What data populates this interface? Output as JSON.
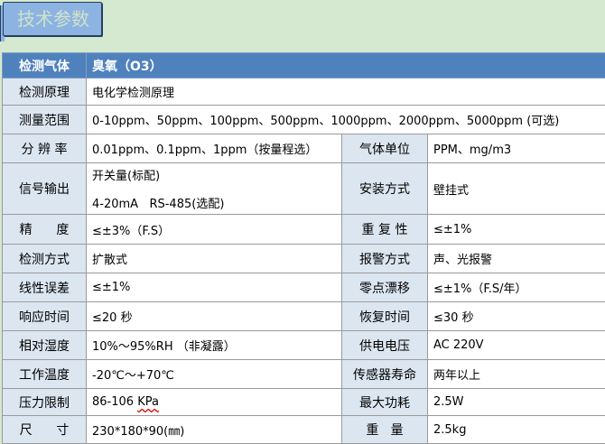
{
  "banner": {
    "title": "技术参数"
  },
  "header": {
    "label": "检测气体",
    "value": "臭氧（O3）"
  },
  "rows": [
    {
      "label": "检测原理",
      "value": "电化学检测原理"
    },
    {
      "label": "测量范围",
      "value": "0-10ppm、50ppm、100ppm、500ppm、1000ppm、2000ppm、5000ppm (可选)"
    },
    {
      "label": "分 辨 率",
      "value": "0.01ppm、0.1ppm、1ppm（按量程选）",
      "label2": "气体单位",
      "value2": "PPM、mg/m3"
    },
    {
      "label": "信号输出",
      "value_line1": "开关量(标配)",
      "value_line2": "4-20mA   RS-485(选配)",
      "label2": "安装方式",
      "value2": "壁挂式"
    },
    {
      "label": "精      度",
      "value": "≤±3%（F.S）",
      "label2": "重 复 性",
      "value2": "≤±1%"
    },
    {
      "label": "检测方式",
      "value": "扩散式",
      "label2": "报警方式",
      "value2": "声、光报警"
    },
    {
      "label": "线性误差",
      "value": "≤±1%",
      "label2": "零点漂移",
      "value2": "≤±1%（F.S/年）"
    },
    {
      "label": "响应时间",
      "value": "≤20 秒",
      "label2": "恢复时间",
      "value2": "≤30 秒"
    },
    {
      "label": "相对湿度",
      "value": "10%～95%RH （非凝露）",
      "label2": "供电电压",
      "value2": "AC 220V"
    },
    {
      "label": "工作温度",
      "value": "-20℃～+70℃",
      "label2": "传感器寿命",
      "value2": "两年以上"
    },
    {
      "label": "压力限制",
      "value_prefix": "86-106 ",
      "value_unit": "KPa",
      "label2": "最大功耗",
      "value2": "2.5W"
    },
    {
      "label": "尺      寸",
      "value": "230*180*90(㎜)",
      "label2": "重   量",
      "value2": "2.5kg"
    }
  ]
}
